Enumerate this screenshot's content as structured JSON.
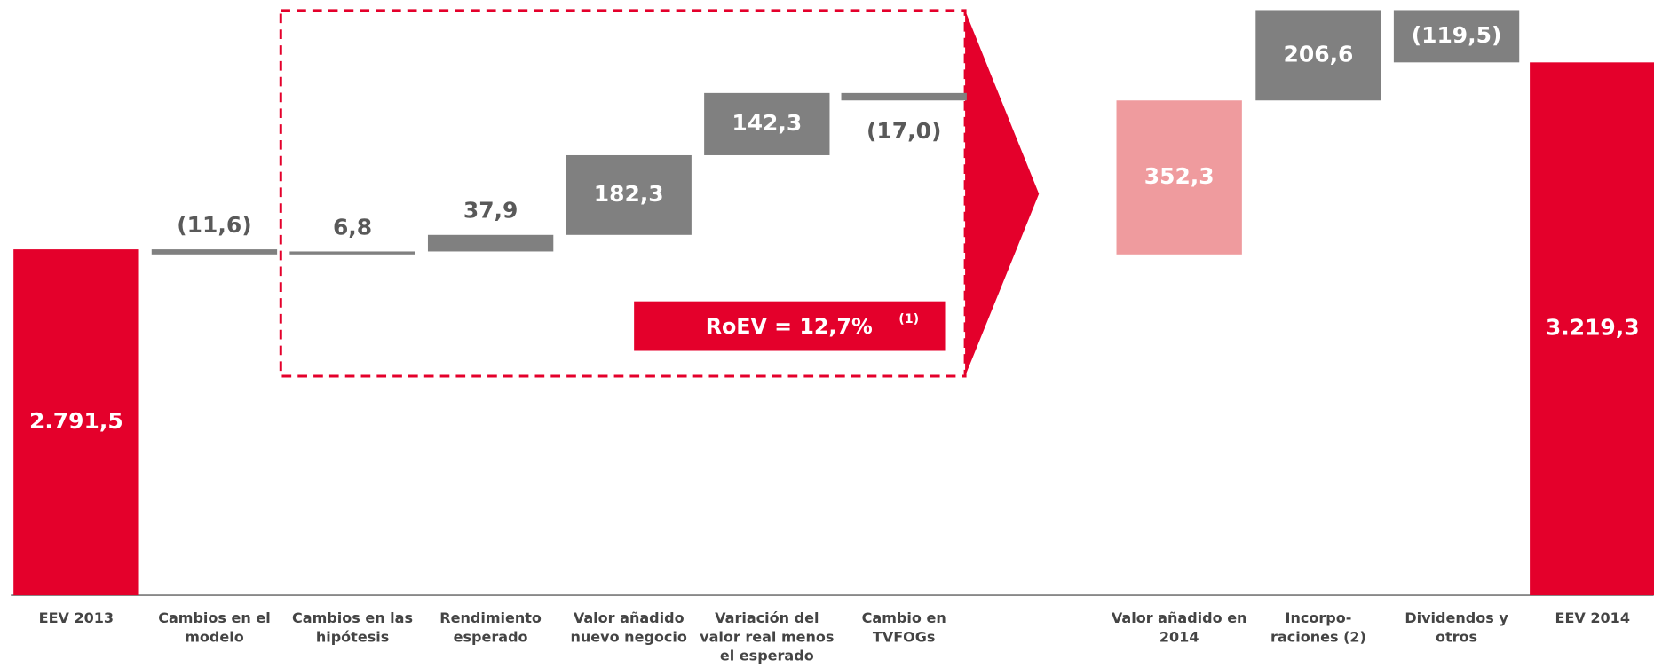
{
  "chart_data": {
    "type": "waterfall",
    "categories": [
      [
        "EEV 2013"
      ],
      [
        "Cambios en el",
        "modelo"
      ],
      [
        "Cambios en las",
        "hipótesis"
      ],
      [
        "Rendimiento",
        "esperado"
      ],
      [
        "Valor añadido",
        "nuevo negocio"
      ],
      [
        "Variación del",
        "valor real menos",
        "el esperado"
      ],
      [
        "Cambio en",
        "TVFOGs"
      ],
      [
        "Valor añadido en",
        "2014"
      ],
      [
        "Incorpo-",
        "raciones (2)"
      ],
      [
        "Dividendos y",
        "otros"
      ],
      [
        "EEV 2014"
      ]
    ],
    "values": [
      2791.5,
      -11.6,
      6.8,
      37.9,
      182.3,
      142.3,
      -17.0,
      352.3,
      206.6,
      -119.5,
      3219.3
    ],
    "value_labels": [
      "2.791,5",
      "(11,6)",
      "6,8",
      "37,9",
      "182,3",
      "142,3",
      "(17,0)",
      "352,3",
      "206,6",
      "(119,5)",
      "3.219,3"
    ],
    "measures": [
      "absolute",
      "relative",
      "relative",
      "relative",
      "relative",
      "relative",
      "relative",
      "subtotal",
      "relative",
      "relative",
      "absolute"
    ],
    "colors": [
      "#e4002b",
      "#808080",
      "#808080",
      "#808080",
      "#808080",
      "#808080",
      "#808080",
      "#ef9b9e",
      "#808080",
      "#808080",
      "#e4002b"
    ],
    "ylim": [
      2000,
      3350
    ],
    "annotation": {
      "text": "RoEV = 12,7%",
      "note": "(1)"
    }
  }
}
